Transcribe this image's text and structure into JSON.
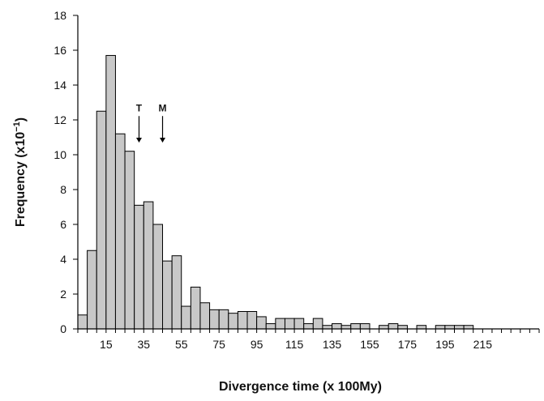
{
  "chart_data": {
    "type": "bar",
    "title": "",
    "xlabel": "Divergence time (x 100My)",
    "ylabel_main": "Frequency (x10",
    "ylabel_sup": "−1",
    "ylabel_end": ")",
    "bin_start": 0,
    "bin_width": 5,
    "values": [
      0.8,
      4.5,
      12.5,
      15.7,
      11.2,
      10.2,
      7.1,
      7.3,
      6.0,
      3.9,
      4.2,
      1.3,
      2.4,
      1.5,
      1.1,
      1.1,
      0.9,
      1.0,
      1.0,
      0.7,
      0.3,
      0.6,
      0.6,
      0.6,
      0.3,
      0.6,
      0.2,
      0.3,
      0.2,
      0.3,
      0.3,
      0.0,
      0.2,
      0.3,
      0.2,
      0.0,
      0.2,
      0.0,
      0.2,
      0.2,
      0.2,
      0.2,
      0.0,
      0.0,
      0.0,
      0.0,
      0.0,
      0.0,
      0.0
    ],
    "ylim": [
      0,
      18
    ],
    "xlim": [
      0,
      245
    ],
    "yticks": [
      "0",
      "2",
      "4",
      "6",
      "8",
      "10",
      "12",
      "14",
      "16",
      "18"
    ],
    "xtick_values": [
      15,
      35,
      55,
      75,
      95,
      115,
      135,
      155,
      175,
      195,
      215
    ],
    "xtick_labels": [
      "15",
      "35",
      "55",
      "75",
      "95",
      "115",
      "135",
      "155",
      "175",
      "195",
      "215"
    ],
    "annotations": [
      {
        "label": "T",
        "x": 32.5,
        "y_top": 12.5,
        "y_bottom": 10.7
      },
      {
        "label": "M",
        "x": 45,
        "y_top": 12.5,
        "y_bottom": 10.7
      }
    ],
    "grid": false,
    "legend": "none"
  }
}
